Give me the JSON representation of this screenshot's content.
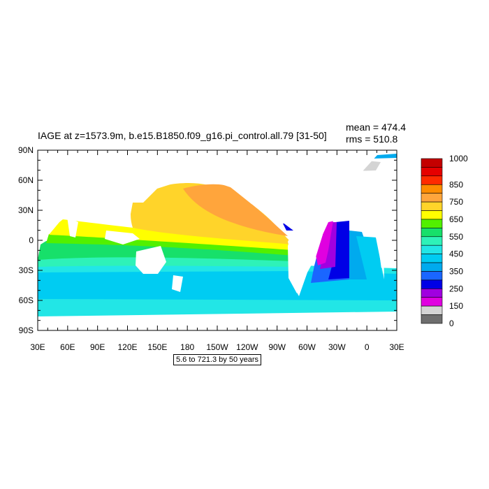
{
  "title": "IAGE at z=1573.9m, b.e15.B1850.f09_g16.pi_control.all.79 [31-50]",
  "stats": {
    "mean": "mean = 474.4",
    "rms": "rms = 510.8"
  },
  "range_note": "5.6 to 721.3 by 50 years",
  "map_data": {
    "variable": "IAGE",
    "depth_m": 1573.9,
    "mean": 474.4,
    "rms": 510.8,
    "lon_labels": [
      "30E",
      "60E",
      "90E",
      "120E",
      "150E",
      "180",
      "150W",
      "120W",
      "90W",
      "60W",
      "30W",
      "0",
      "30E"
    ],
    "lat_labels": [
      "90N",
      "60N",
      "30N",
      "0",
      "30S",
      "60S",
      "90S"
    ]
  },
  "colorbar": {
    "labels": [
      "1000",
      "850",
      "750",
      "650",
      "550",
      "450",
      "350",
      "250",
      "150",
      "0"
    ],
    "colors": [
      "#c40000",
      "#e60000",
      "#ff2a00",
      "#ff8c00",
      "#ffa53c",
      "#ffd42a",
      "#ffff00",
      "#52f000",
      "#17e06a",
      "#2ef2b8",
      "#22e6e6",
      "#00ccf2",
      "#00aaee",
      "#1a66ff",
      "#0000e6",
      "#a000e0",
      "#e000e0",
      "#d4d4d4",
      "#6e6e6e"
    ],
    "colors_note": "top to bottom"
  },
  "colors": {
    "orange": "#ffa53c",
    "light_orange": "#ffd42a",
    "yellow": "#ffff00",
    "green": "#52f000",
    "spring_green": "#17e06a",
    "aqua": "#2ef2b8",
    "cyan": "#22e6e6",
    "sky": "#00ccf2",
    "blue_light": "#00aaee",
    "blue": "#1a66ff",
    "deep_blue": "#0000e6",
    "purple": "#a000e0",
    "magenta": "#e000e0",
    "light_gray": "#d4d4d4",
    "dark_gray": "#6e6e6e"
  }
}
